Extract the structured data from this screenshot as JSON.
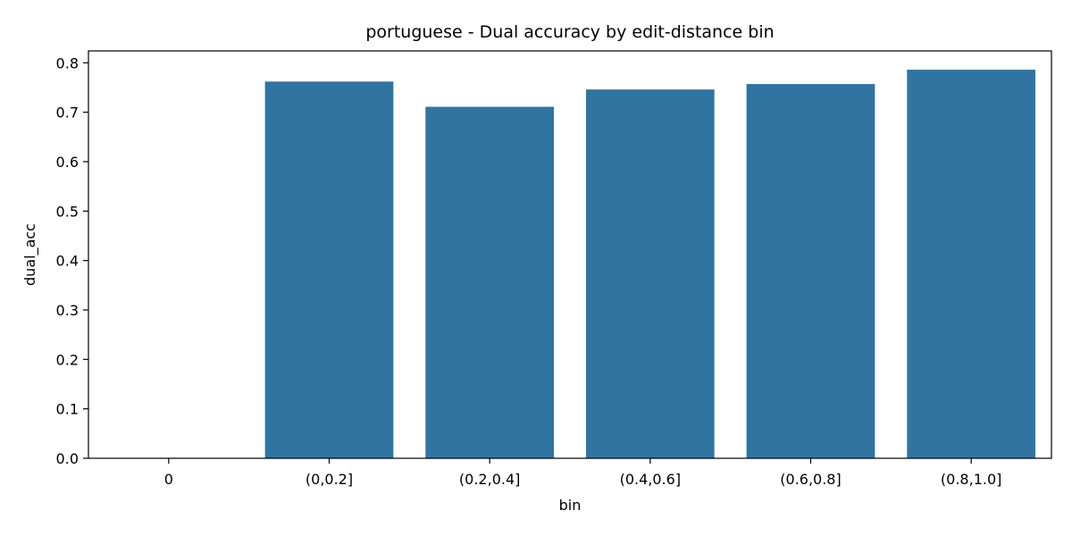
{
  "chart_data": {
    "type": "bar",
    "title": "portuguese - Dual accuracy by edit-distance bin",
    "xlabel": "bin",
    "ylabel": "dual_acc",
    "categories": [
      "0",
      "(0,0.2]",
      "(0.2,0.4]",
      "(0.4,0.6]",
      "(0.6,0.8]",
      "(0.8,1.0]"
    ],
    "values": [
      0.0,
      0.762,
      0.711,
      0.746,
      0.757,
      0.786
    ],
    "ylim": [
      0,
      0.824
    ],
    "yticks": [
      "0.0",
      "0.1",
      "0.2",
      "0.3",
      "0.4",
      "0.5",
      "0.6",
      "0.7",
      "0.8"
    ],
    "bar_color": "#3274a1",
    "grid": false,
    "legend": "none"
  }
}
